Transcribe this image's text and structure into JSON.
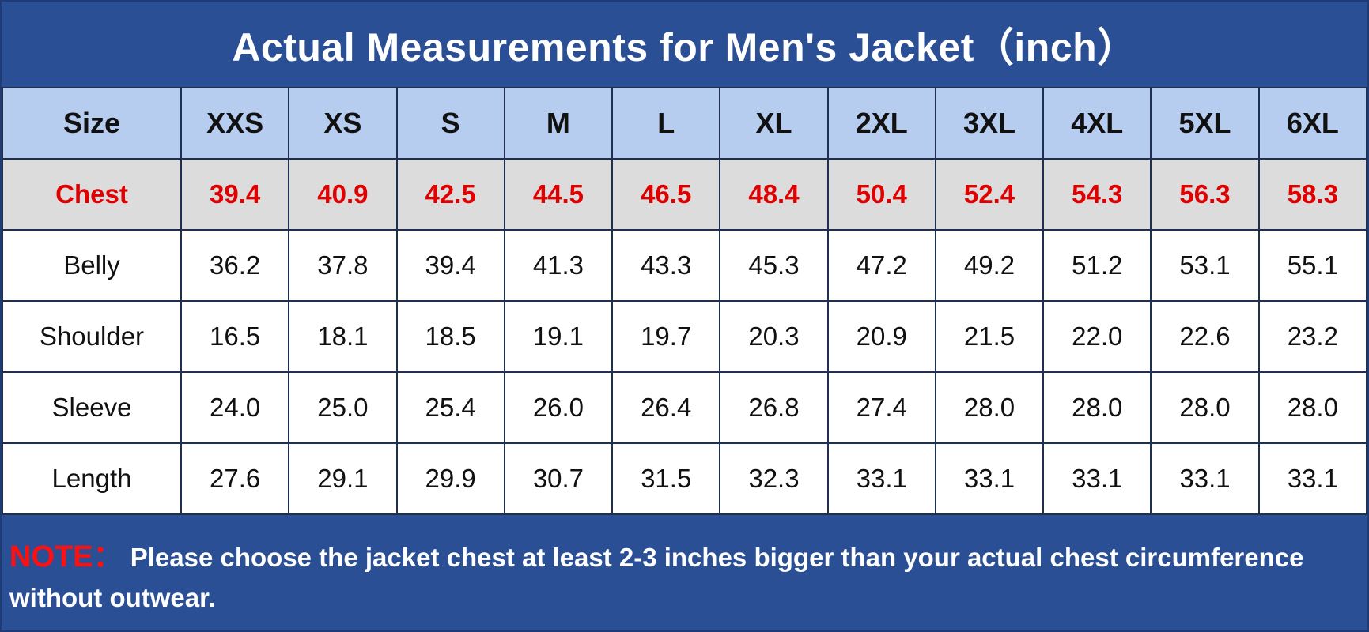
{
  "title": "Actual Measurements for Men's Jacket（inch）",
  "table": {
    "header": [
      "Size",
      "XXS",
      "XS",
      "S",
      "M",
      "L",
      "XL",
      "2XL",
      "3XL",
      "4XL",
      "5XL",
      "6XL"
    ],
    "rows": [
      {
        "label": "Chest",
        "values": [
          "39.4",
          "40.9",
          "42.5",
          "44.5",
          "46.5",
          "48.4",
          "50.4",
          "52.4",
          "54.3",
          "56.3",
          "58.3"
        ]
      },
      {
        "label": "Belly",
        "values": [
          "36.2",
          "37.8",
          "39.4",
          "41.3",
          "43.3",
          "45.3",
          "47.2",
          "49.2",
          "51.2",
          "53.1",
          "55.1"
        ]
      },
      {
        "label": "Shoulder",
        "values": [
          "16.5",
          "18.1",
          "18.5",
          "19.1",
          "19.7",
          "20.3",
          "20.9",
          "21.5",
          "22.0",
          "22.6",
          "23.2"
        ]
      },
      {
        "label": "Sleeve",
        "values": [
          "24.0",
          "25.0",
          "25.4",
          "26.0",
          "26.4",
          "26.8",
          "27.4",
          "28.0",
          "28.0",
          "28.0",
          "28.0"
        ]
      },
      {
        "label": "Length",
        "values": [
          "27.6",
          "29.1",
          "29.9",
          "30.7",
          "31.5",
          "32.3",
          "33.1",
          "33.1",
          "33.1",
          "33.1",
          "33.1"
        ]
      }
    ]
  },
  "note": {
    "label": "NOTE：",
    "text": "Please choose the jacket chest at least 2-3 inches bigger than your actual chest circumference without outwear."
  },
  "colors": {
    "title_bg": "#2b4f95",
    "header_bg": "#b7cdf0",
    "chest_bg": "#dcdcdc",
    "chest_text": "#e00000",
    "note_label": "#ff1010"
  }
}
